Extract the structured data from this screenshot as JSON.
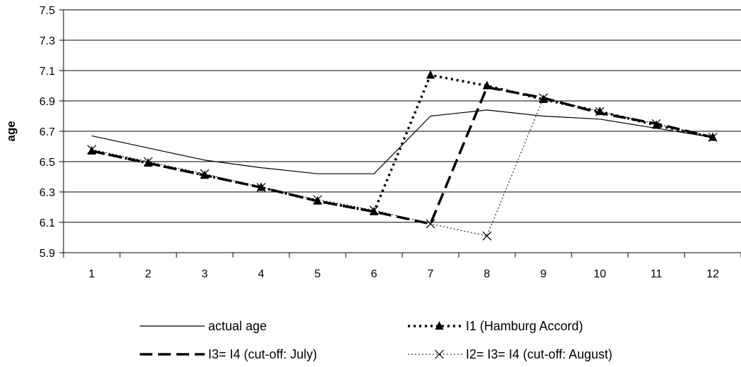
{
  "chart_data": {
    "type": "line",
    "ylabel": "age",
    "xlabel": "",
    "title": "",
    "categories": [
      "1",
      "2",
      "3",
      "4",
      "5",
      "6",
      "7",
      "8",
      "9",
      "10",
      "11",
      "12"
    ],
    "ylim": [
      5.9,
      7.5
    ],
    "yticks": [
      "5.9",
      "6.1",
      "6.3",
      "6.5",
      "6.7",
      "6.9",
      "7.1",
      "7.3",
      "7.5"
    ],
    "grid": "horizontal",
    "legend_position": "bottom",
    "series": [
      {
        "name": "actual age",
        "style": "thin-solid",
        "color": "#000000",
        "values": [
          6.67,
          6.59,
          6.51,
          6.46,
          6.42,
          6.42,
          6.8,
          6.84,
          6.8,
          6.78,
          6.72,
          6.66
        ]
      },
      {
        "name": "I1 (Hamburg Accord)",
        "style": "dotted-triangle",
        "color": "#000000",
        "values": [
          6.57,
          6.49,
          6.41,
          6.33,
          6.24,
          6.17,
          7.07,
          7.0,
          6.91,
          6.83,
          6.74,
          6.66
        ]
      },
      {
        "name": "I3= I4 (cut-off: July)",
        "style": "dashed-bold",
        "color": "#000000",
        "values": [
          6.57,
          6.49,
          6.41,
          6.33,
          6.24,
          6.17,
          6.09,
          6.99,
          6.92,
          6.82,
          6.75,
          6.66
        ]
      },
      {
        "name": "I2= I3= I4 (cut-off: August)",
        "style": "fine-dotted-x",
        "color": "#000000",
        "values": [
          6.58,
          6.5,
          6.42,
          6.33,
          6.25,
          6.18,
          6.09,
          6.01,
          6.92,
          6.83,
          6.75,
          6.66
        ]
      }
    ]
  }
}
